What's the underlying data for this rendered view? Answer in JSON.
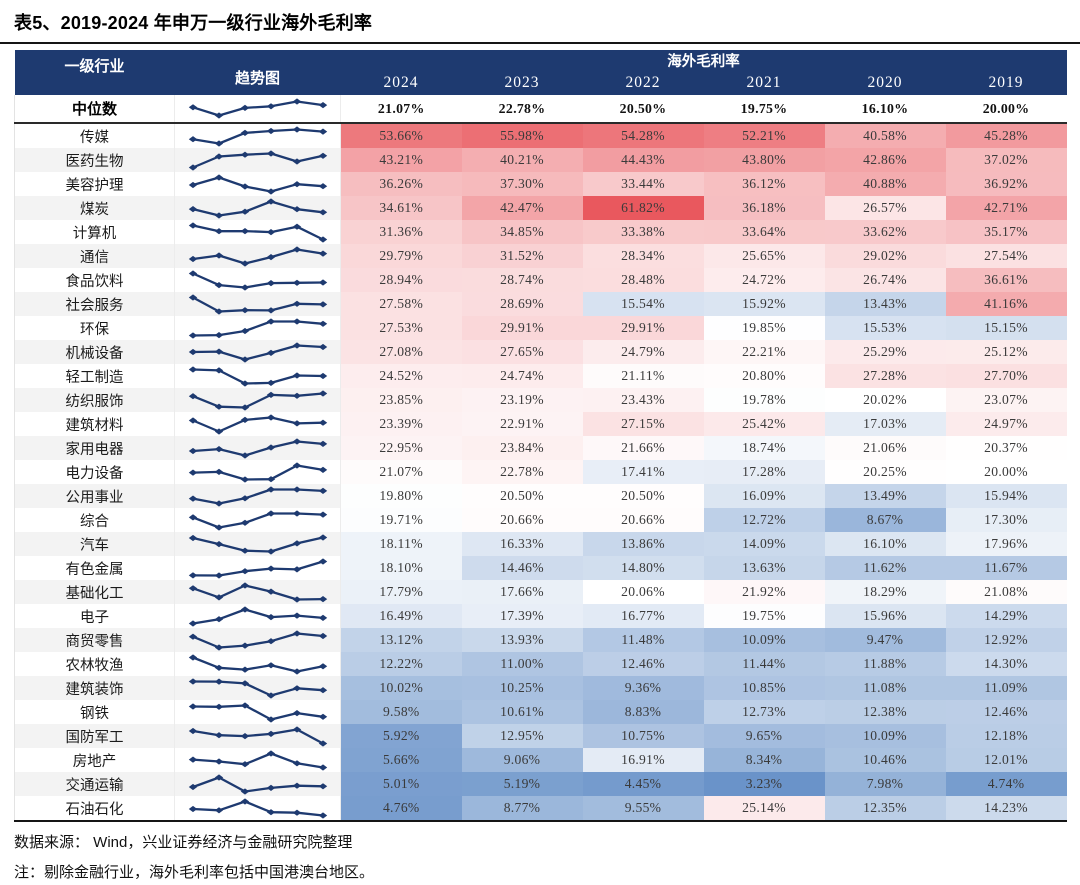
{
  "title": "表5、2019-2024 年申万一级行业海外毛利率",
  "chart_data": {
    "type": "table",
    "subtype": "heatmap_with_trend_sparklines",
    "columns": {
      "industry": "一级行业",
      "trend": "趋势图",
      "group": "海外毛利率"
    },
    "years": [
      "2024",
      "2023",
      "2022",
      "2021",
      "2020",
      "2019"
    ],
    "value_format": "percent_two_decimals",
    "median_row": {
      "label": "中位数",
      "values": [
        21.07,
        22.78,
        20.5,
        19.75,
        16.1,
        20.0
      ]
    },
    "rows": [
      {
        "label": "传媒",
        "values": [
          53.66,
          55.98,
          54.28,
          52.21,
          40.58,
          45.28
        ]
      },
      {
        "label": "医药生物",
        "values": [
          43.21,
          40.21,
          44.43,
          43.8,
          42.86,
          37.02
        ]
      },
      {
        "label": "美容护理",
        "values": [
          36.26,
          37.3,
          33.44,
          36.12,
          40.88,
          36.92
        ]
      },
      {
        "label": "煤炭",
        "values": [
          34.61,
          42.47,
          61.82,
          36.18,
          26.57,
          42.71
        ]
      },
      {
        "label": "计算机",
        "values": [
          31.36,
          34.85,
          33.38,
          33.64,
          33.62,
          35.17
        ]
      },
      {
        "label": "通信",
        "values": [
          29.79,
          31.52,
          28.34,
          25.65,
          29.02,
          27.54
        ]
      },
      {
        "label": "食品饮料",
        "values": [
          28.94,
          28.74,
          28.48,
          24.72,
          26.74,
          36.61
        ]
      },
      {
        "label": "社会服务",
        "values": [
          27.58,
          28.69,
          15.54,
          15.92,
          13.43,
          41.16
        ]
      },
      {
        "label": "环保",
        "values": [
          27.53,
          29.91,
          29.91,
          19.85,
          15.53,
          15.15
        ]
      },
      {
        "label": "机械设备",
        "values": [
          27.08,
          27.65,
          24.79,
          22.21,
          25.29,
          25.12
        ]
      },
      {
        "label": "轻工制造",
        "values": [
          24.52,
          24.74,
          21.11,
          20.8,
          27.28,
          27.7
        ]
      },
      {
        "label": "纺织服饰",
        "values": [
          23.85,
          23.19,
          23.43,
          19.78,
          20.02,
          23.07
        ]
      },
      {
        "label": "建筑材料",
        "values": [
          23.39,
          22.91,
          27.15,
          25.42,
          17.03,
          24.97
        ]
      },
      {
        "label": "家用电器",
        "values": [
          22.95,
          23.84,
          21.66,
          18.74,
          21.06,
          20.37
        ]
      },
      {
        "label": "电力设备",
        "values": [
          21.07,
          22.78,
          17.41,
          17.28,
          20.25,
          20.0
        ]
      },
      {
        "label": "公用事业",
        "values": [
          19.8,
          20.5,
          20.5,
          16.09,
          13.49,
          15.94
        ]
      },
      {
        "label": "综合",
        "values": [
          19.71,
          20.66,
          20.66,
          12.72,
          8.67,
          17.3
        ]
      },
      {
        "label": "汽车",
        "values": [
          18.11,
          16.33,
          13.86,
          14.09,
          16.1,
          17.96
        ]
      },
      {
        "label": "有色金属",
        "values": [
          18.1,
          14.46,
          14.8,
          13.63,
          11.62,
          11.67
        ]
      },
      {
        "label": "基础化工",
        "values": [
          17.79,
          17.66,
          20.06,
          21.92,
          18.29,
          21.08
        ]
      },
      {
        "label": "电子",
        "values": [
          16.49,
          17.39,
          16.77,
          19.75,
          15.96,
          14.29
        ]
      },
      {
        "label": "商贸零售",
        "values": [
          13.12,
          13.93,
          11.48,
          10.09,
          9.47,
          12.92
        ]
      },
      {
        "label": "农林牧渔",
        "values": [
          12.22,
          11.0,
          12.46,
          11.44,
          11.88,
          14.3
        ]
      },
      {
        "label": "建筑装饰",
        "values": [
          10.02,
          10.25,
          9.36,
          10.85,
          11.08,
          11.09
        ]
      },
      {
        "label": "钢铁",
        "values": [
          9.58,
          10.61,
          8.83,
          12.73,
          12.38,
          12.46
        ]
      },
      {
        "label": "国防军工",
        "values": [
          5.92,
          12.95,
          10.75,
          9.65,
          10.09,
          12.18
        ]
      },
      {
        "label": "房地产",
        "values": [
          5.66,
          9.06,
          16.91,
          8.34,
          10.46,
          12.01
        ]
      },
      {
        "label": "交通运输",
        "values": [
          5.01,
          5.19,
          4.45,
          3.23,
          7.98,
          4.74
        ]
      },
      {
        "label": "石油石化",
        "values": [
          4.76,
          8.77,
          9.55,
          25.14,
          12.35,
          14.23
        ]
      }
    ]
  },
  "heatmap": {
    "min_color": "#6A93C9",
    "mid_color": "#FFFFFF",
    "max_color": "#E9585E"
  },
  "colors": {
    "header_bg": "#1E3A70",
    "header_text": "#FFFFFF",
    "sparkline": "#1E3A70",
    "stripe": "#F3F3F3"
  },
  "footer": {
    "source": "数据来源： Wind，兴业证券经济与金融研究院整理",
    "note": "注：剔除金融行业，海外毛利率包括中国港澳台地区。"
  }
}
